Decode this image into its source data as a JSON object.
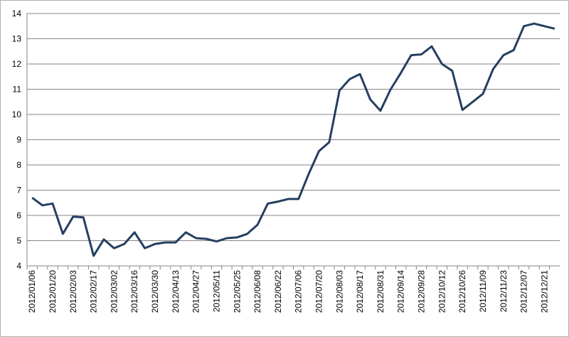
{
  "chart_data": {
    "type": "line",
    "categories": [
      "2012/01/06",
      null,
      "2012/01/20",
      null,
      "2012/02/03",
      null,
      "2012/02/17",
      null,
      "2012/03/02",
      null,
      "2012/03/16",
      null,
      "2012/03/30",
      null,
      "2012/04/13",
      null,
      "2012/04/27",
      null,
      "2012/05/11",
      null,
      "2012/05/25",
      null,
      "2012/06/08",
      null,
      "2012/06/22",
      null,
      "2012/07/06",
      null,
      "2012/07/20",
      null,
      "2012/08/03",
      null,
      "2012/08/17",
      null,
      "2012/08/31",
      null,
      "2012/09/14",
      null,
      "2012/09/28",
      null,
      "2012/10/12",
      null,
      "2012/10/26",
      null,
      "2012/11/09",
      null,
      "2012/11/23",
      null,
      "2012/12/07",
      null,
      "2012/12/21",
      null
    ],
    "series": [
      {
        "color": "#243f60",
        "values": [
          6.7,
          6.4,
          6.47,
          5.27,
          5.95,
          5.92,
          4.4,
          5.05,
          4.7,
          4.87,
          5.33,
          4.7,
          4.87,
          4.93,
          4.93,
          5.33,
          5.1,
          5.07,
          4.97,
          5.1,
          5.13,
          5.27,
          5.63,
          6.47,
          6.55,
          6.65,
          6.65,
          7.65,
          8.55,
          8.9,
          10.95,
          11.4,
          11.6,
          10.6,
          10.15,
          11.0,
          11.65,
          12.35,
          12.38,
          12.7,
          12.0,
          11.73,
          10.18,
          10.5,
          10.82,
          11.8,
          12.35,
          12.55,
          13.5,
          13.6,
          13.5,
          13.4
        ]
      }
    ],
    "ylim": [
      4,
      14
    ],
    "yticks": [
      4,
      5,
      6,
      7,
      8,
      9,
      10,
      11,
      12,
      13,
      14
    ],
    "grid": true
  }
}
